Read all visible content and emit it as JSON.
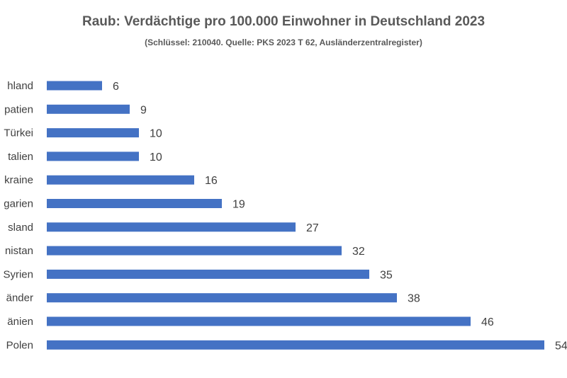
{
  "chart_data": {
    "type": "bar",
    "orientation": "horizontal",
    "title": "Raub: Verdächtige pro 100.000 Einwohner in Deutschland 2023",
    "subtitle": "(Schlüssel: 210040. Quelle: PKS 2023 T 62, Ausländerzentralregister)",
    "categories": [
      "hland",
      "patien",
      "Türkei",
      "talien",
      "kraine",
      "garien",
      "sland",
      "nistan",
      "Syrien",
      "änder",
      "änien",
      "Polen"
    ],
    "values": [
      6,
      9,
      10,
      10,
      16,
      19,
      27,
      32,
      35,
      38,
      46,
      54
    ],
    "value_labels": [
      "6",
      "9",
      "10",
      "10",
      "16",
      "19",
      "27",
      "32",
      "35",
      "38",
      "46",
      "54"
    ],
    "bar_color": "#4472c4",
    "xlim": [
      0,
      54
    ],
    "grid": false,
    "legend": "none"
  }
}
